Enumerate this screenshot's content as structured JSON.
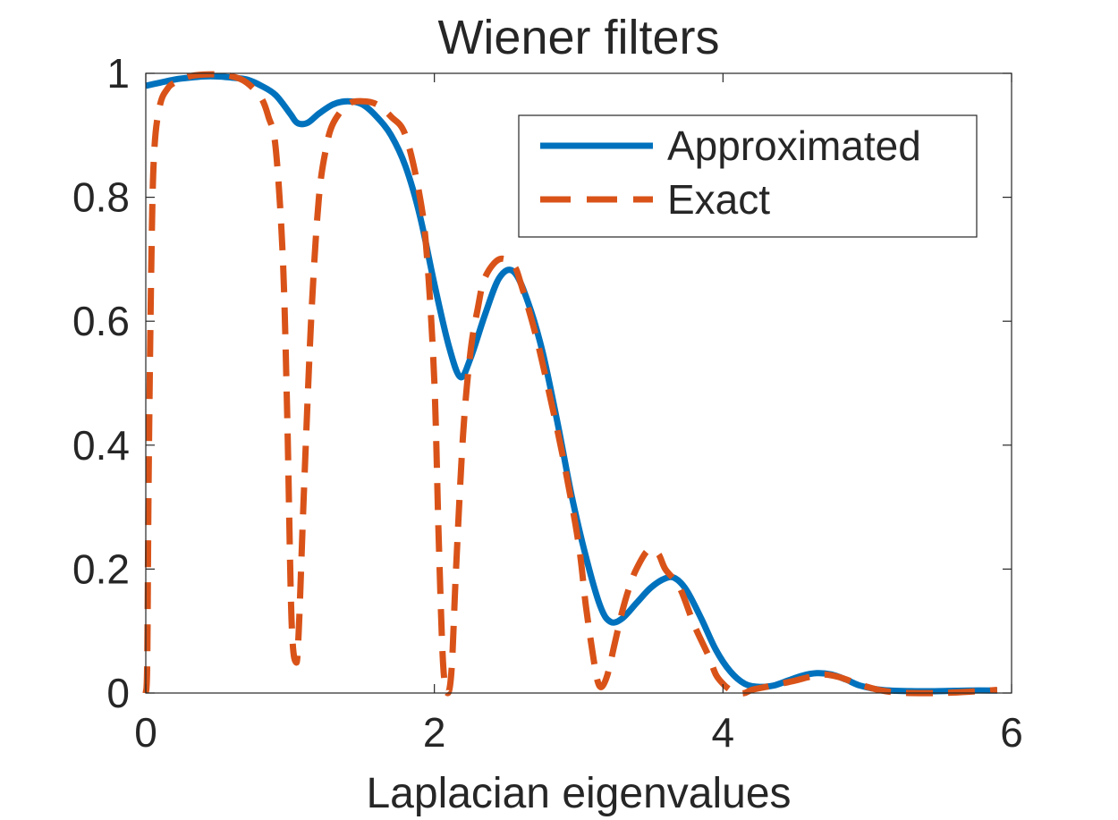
{
  "chart_data": {
    "type": "line",
    "title": "Wiener filters",
    "xlabel": "Laplacian eigenvalues",
    "ylabel": "",
    "xlim": [
      0,
      6
    ],
    "ylim": [
      0,
      1
    ],
    "xticks": [
      0,
      2,
      4,
      6
    ],
    "xtick_labels": [
      "0",
      "2",
      "4",
      "6"
    ],
    "yticks": [
      0,
      0.2,
      0.4,
      0.6,
      0.8,
      1
    ],
    "ytick_labels": [
      "0",
      "0.2",
      "0.4",
      "0.6",
      "0.8",
      "1"
    ],
    "grid": false,
    "legend_position": "top-right",
    "series": [
      {
        "name": "Approximated",
        "color": "#0072BD",
        "line_style": "solid",
        "x": [
          0,
          0.1,
          0.2,
          0.3,
          0.4,
          0.5,
          0.6,
          0.7,
          0.8,
          0.9,
          1.0,
          1.05,
          1.12,
          1.2,
          1.3,
          1.4,
          1.5,
          1.6,
          1.7,
          1.8,
          1.9,
          2.0,
          2.1,
          2.18,
          2.25,
          2.35,
          2.45,
          2.55,
          2.65,
          2.75,
          2.85,
          2.95,
          3.05,
          3.15,
          3.22,
          3.3,
          3.4,
          3.5,
          3.6,
          3.67,
          3.75,
          3.85,
          3.95,
          4.05,
          4.15,
          4.25,
          4.35,
          4.45,
          4.55,
          4.65,
          4.75,
          4.85,
          4.95,
          5.1,
          5.3,
          5.5,
          5.7,
          5.9
        ],
        "y": [
          0.98,
          0.985,
          0.99,
          0.993,
          0.995,
          0.995,
          0.993,
          0.99,
          0.98,
          0.965,
          0.935,
          0.92,
          0.92,
          0.935,
          0.95,
          0.955,
          0.95,
          0.93,
          0.9,
          0.85,
          0.77,
          0.66,
          0.56,
          0.51,
          0.54,
          0.61,
          0.67,
          0.68,
          0.63,
          0.55,
          0.44,
          0.32,
          0.22,
          0.14,
          0.115,
          0.12,
          0.145,
          0.17,
          0.185,
          0.185,
          0.165,
          0.12,
          0.07,
          0.035,
          0.015,
          0.01,
          0.012,
          0.02,
          0.028,
          0.032,
          0.03,
          0.022,
          0.012,
          0.005,
          0.003,
          0.003,
          0.004,
          0.004
        ]
      },
      {
        "name": "Exact",
        "color": "#D95319",
        "line_style": "dashed",
        "x": [
          0,
          0.01,
          0.02,
          0.04,
          0.06,
          0.1,
          0.15,
          0.2,
          0.3,
          0.4,
          0.5,
          0.6,
          0.7,
          0.8,
          0.85,
          0.9,
          0.95,
          0.98,
          1.01,
          1.04,
          1.06,
          1.1,
          1.15,
          1.2,
          1.25,
          1.3,
          1.4,
          1.5,
          1.6,
          1.7,
          1.8,
          1.9,
          1.95,
          2.0,
          2.03,
          2.06,
          2.09,
          2.12,
          2.15,
          2.2,
          2.25,
          2.3,
          2.35,
          2.45,
          2.55,
          2.6,
          2.7,
          2.8,
          2.9,
          3.0,
          3.05,
          3.1,
          3.13,
          3.16,
          3.2,
          3.25,
          3.3,
          3.35,
          3.4,
          3.48,
          3.55,
          3.6,
          3.7,
          3.8,
          3.9,
          3.95,
          4.0,
          4.05,
          4.1,
          4.15,
          4.2,
          4.3,
          4.4,
          4.5,
          4.6,
          4.7,
          4.8,
          4.9,
          5.0,
          5.1,
          5.2,
          5.3,
          5.5,
          5.7,
          5.9
        ],
        "y": [
          0,
          0.05,
          0.35,
          0.72,
          0.88,
          0.95,
          0.975,
          0.985,
          0.995,
          0.998,
          0.998,
          0.995,
          0.985,
          0.96,
          0.93,
          0.88,
          0.7,
          0.45,
          0.12,
          0.05,
          0.1,
          0.35,
          0.62,
          0.8,
          0.88,
          0.92,
          0.95,
          0.955,
          0.95,
          0.93,
          0.9,
          0.8,
          0.7,
          0.5,
          0.25,
          0.05,
          0.0,
          0.04,
          0.2,
          0.42,
          0.55,
          0.62,
          0.67,
          0.7,
          0.69,
          0.66,
          0.58,
          0.48,
          0.37,
          0.24,
          0.14,
          0.06,
          0.02,
          0.01,
          0.03,
          0.08,
          0.13,
          0.17,
          0.2,
          0.23,
          0.225,
          0.2,
          0.17,
          0.11,
          0.06,
          0.03,
          0.015,
          0.005,
          0.0,
          0.0,
          0.005,
          0.01,
          0.015,
          0.02,
          0.026,
          0.03,
          0.026,
          0.018,
          0.01,
          0.004,
          0.001,
          0.0,
          0.0,
          0.002,
          0.005
        ]
      }
    ]
  }
}
